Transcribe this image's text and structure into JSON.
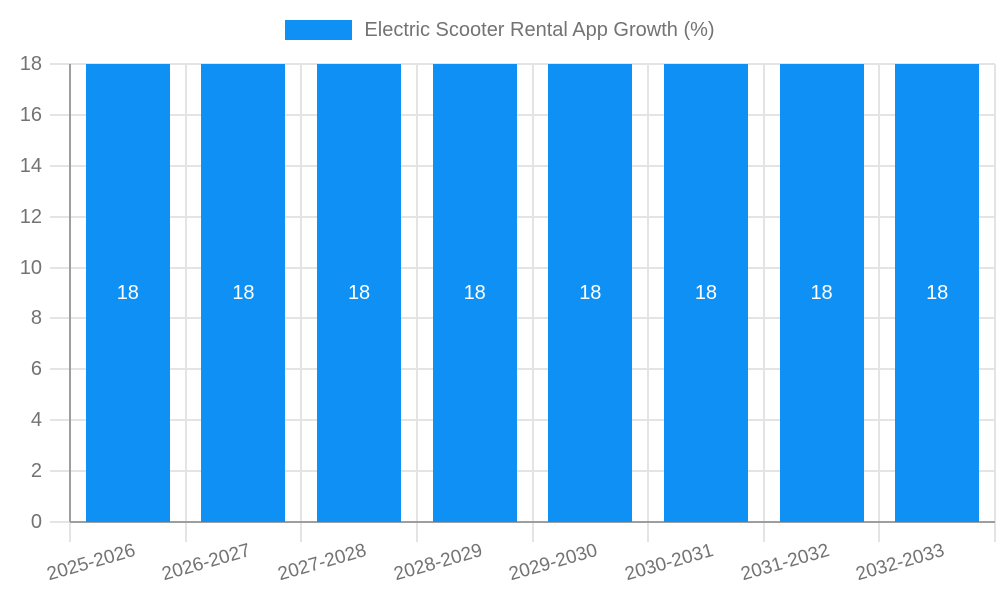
{
  "legend": {
    "items": [
      {
        "label": "Electric Scooter Rental App Growth (%)",
        "color": "#0f90f4"
      }
    ],
    "position": "top-center"
  },
  "chart_data": {
    "type": "bar",
    "title": "Electric Scooter Rental App Growth (%)",
    "categories": [
      "2025-2026",
      "2026-2027",
      "2027-2028",
      "2028-2029",
      "2029-2030",
      "2030-2031",
      "2031-2032",
      "2032-2033"
    ],
    "series": [
      {
        "name": "Electric Scooter Rental App Growth (%)",
        "values": [
          18,
          18,
          18,
          18,
          18,
          18,
          18,
          18
        ]
      }
    ],
    "value_labels": [
      "18",
      "18",
      "18",
      "18",
      "18",
      "18",
      "18",
      "18"
    ],
    "xlabel": "",
    "ylabel": "",
    "ylim": [
      0,
      18
    ],
    "ytick_step": 2,
    "ytick_labels": [
      "0",
      "2",
      "4",
      "6",
      "8",
      "10",
      "12",
      "14",
      "16",
      "18"
    ],
    "xtick_rotation_deg": -16,
    "grid": true,
    "legend_position": "top-center",
    "colors": {
      "bar": "#0f90f4",
      "grid": "#e4e4e4",
      "axis": "#9e9e9e",
      "tick_text": "#737373",
      "value_label": "#ffffff",
      "background": "#ffffff"
    }
  }
}
